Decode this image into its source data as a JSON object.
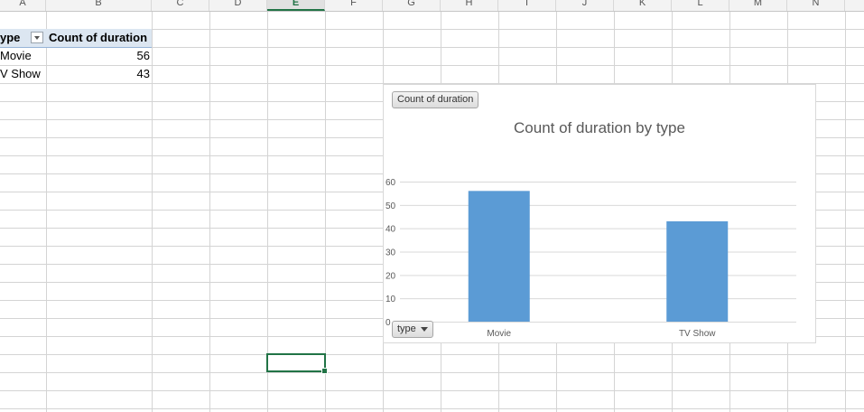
{
  "columns": [
    "A",
    "B",
    "C",
    "D",
    "E",
    "F",
    "G",
    "H",
    "I",
    "J",
    "K",
    "L",
    "M",
    "N"
  ],
  "selected_column": "E",
  "pivot": {
    "row_header": "ype",
    "value_header": "Count of duration",
    "rows": [
      {
        "label": "Movie",
        "value": "56"
      },
      {
        "label": "V Show",
        "value": "43"
      }
    ]
  },
  "chart": {
    "field_button_value": "Count of duration",
    "field_button_axis": "type",
    "title": "Count of duration by type"
  },
  "chart_data": {
    "type": "bar",
    "title": "Count of duration by type",
    "categories": [
      "Movie",
      "TV Show"
    ],
    "values": [
      56,
      43
    ],
    "ylim": [
      0,
      60
    ],
    "yticks": [
      0,
      10,
      20,
      30,
      40,
      50,
      60
    ],
    "grid": true,
    "bar_color": "#5b9bd5"
  },
  "colors": {
    "accent": "#217346",
    "gridline": "#d4d4d4",
    "pivot_header_fill": "#dce6f1"
  }
}
